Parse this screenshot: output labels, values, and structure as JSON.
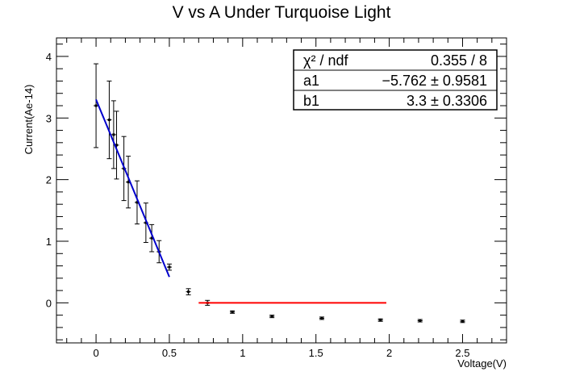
{
  "chart_data": {
    "type": "scatter",
    "title": "V vs A Under Turquoise Light",
    "xlabel": "Voltage(V)",
    "ylabel": "Current(Ae-14)",
    "xlim": [
      -0.27,
      2.8
    ],
    "ylim": [
      -0.65,
      4.3
    ],
    "x_ticks": [
      0,
      0.5,
      1,
      1.5,
      2,
      2.5
    ],
    "x_tick_labels": [
      "0",
      "0.5",
      "1",
      "1.5",
      "2",
      "2.5"
    ],
    "y_ticks": [
      0,
      1,
      2,
      3,
      4
    ],
    "y_tick_labels": [
      "0",
      "1",
      "2",
      "3",
      "4"
    ],
    "grid": false,
    "series": [
      {
        "kind": "points_with_error_bars",
        "color": "#000000",
        "points": [
          {
            "x": 0.0,
            "y": 3.2,
            "err": 0.68
          },
          {
            "x": 0.09,
            "y": 2.97,
            "err": 0.63
          },
          {
            "x": 0.12,
            "y": 2.73,
            "err": 0.55
          },
          {
            "x": 0.14,
            "y": 2.56,
            "err": 0.55
          },
          {
            "x": 0.19,
            "y": 2.18,
            "err": 0.52
          },
          {
            "x": 0.22,
            "y": 1.96,
            "err": 0.42
          },
          {
            "x": 0.28,
            "y": 1.63,
            "err": 0.35
          },
          {
            "x": 0.34,
            "y": 1.3,
            "err": 0.32
          },
          {
            "x": 0.38,
            "y": 1.05,
            "err": 0.22
          },
          {
            "x": 0.43,
            "y": 0.83,
            "err": 0.18
          },
          {
            "x": 0.5,
            "y": 0.58,
            "err": 0.05
          },
          {
            "x": 0.63,
            "y": 0.18,
            "err": 0.05
          },
          {
            "x": 0.76,
            "y": 0.0,
            "err": 0.04
          },
          {
            "x": 0.93,
            "y": -0.15,
            "err": 0.02
          },
          {
            "x": 1.2,
            "y": -0.22,
            "err": 0.02
          },
          {
            "x": 1.54,
            "y": -0.25,
            "err": 0.02
          },
          {
            "x": 1.94,
            "y": -0.28,
            "err": 0.02
          },
          {
            "x": 2.21,
            "y": -0.29,
            "err": 0.02
          },
          {
            "x": 2.5,
            "y": -0.3,
            "err": 0.02
          }
        ]
      },
      {
        "kind": "fit_line",
        "color": "#0000cc",
        "x": [
          0.0,
          0.5
        ],
        "y": [
          3.3,
          0.42
        ]
      },
      {
        "kind": "fit_line",
        "color": "#ff0000",
        "x": [
          0.7,
          1.98
        ],
        "y": [
          0.0,
          0.0
        ]
      }
    ],
    "stats_box": {
      "placement": "top-right",
      "rows": [
        {
          "label": "χ² / ndf",
          "value": "0.355 / 8"
        },
        {
          "label": "a1",
          "value": "−5.762 ± 0.9581"
        },
        {
          "label": "b1",
          "value": "3.3 ± 0.3306"
        }
      ]
    }
  }
}
